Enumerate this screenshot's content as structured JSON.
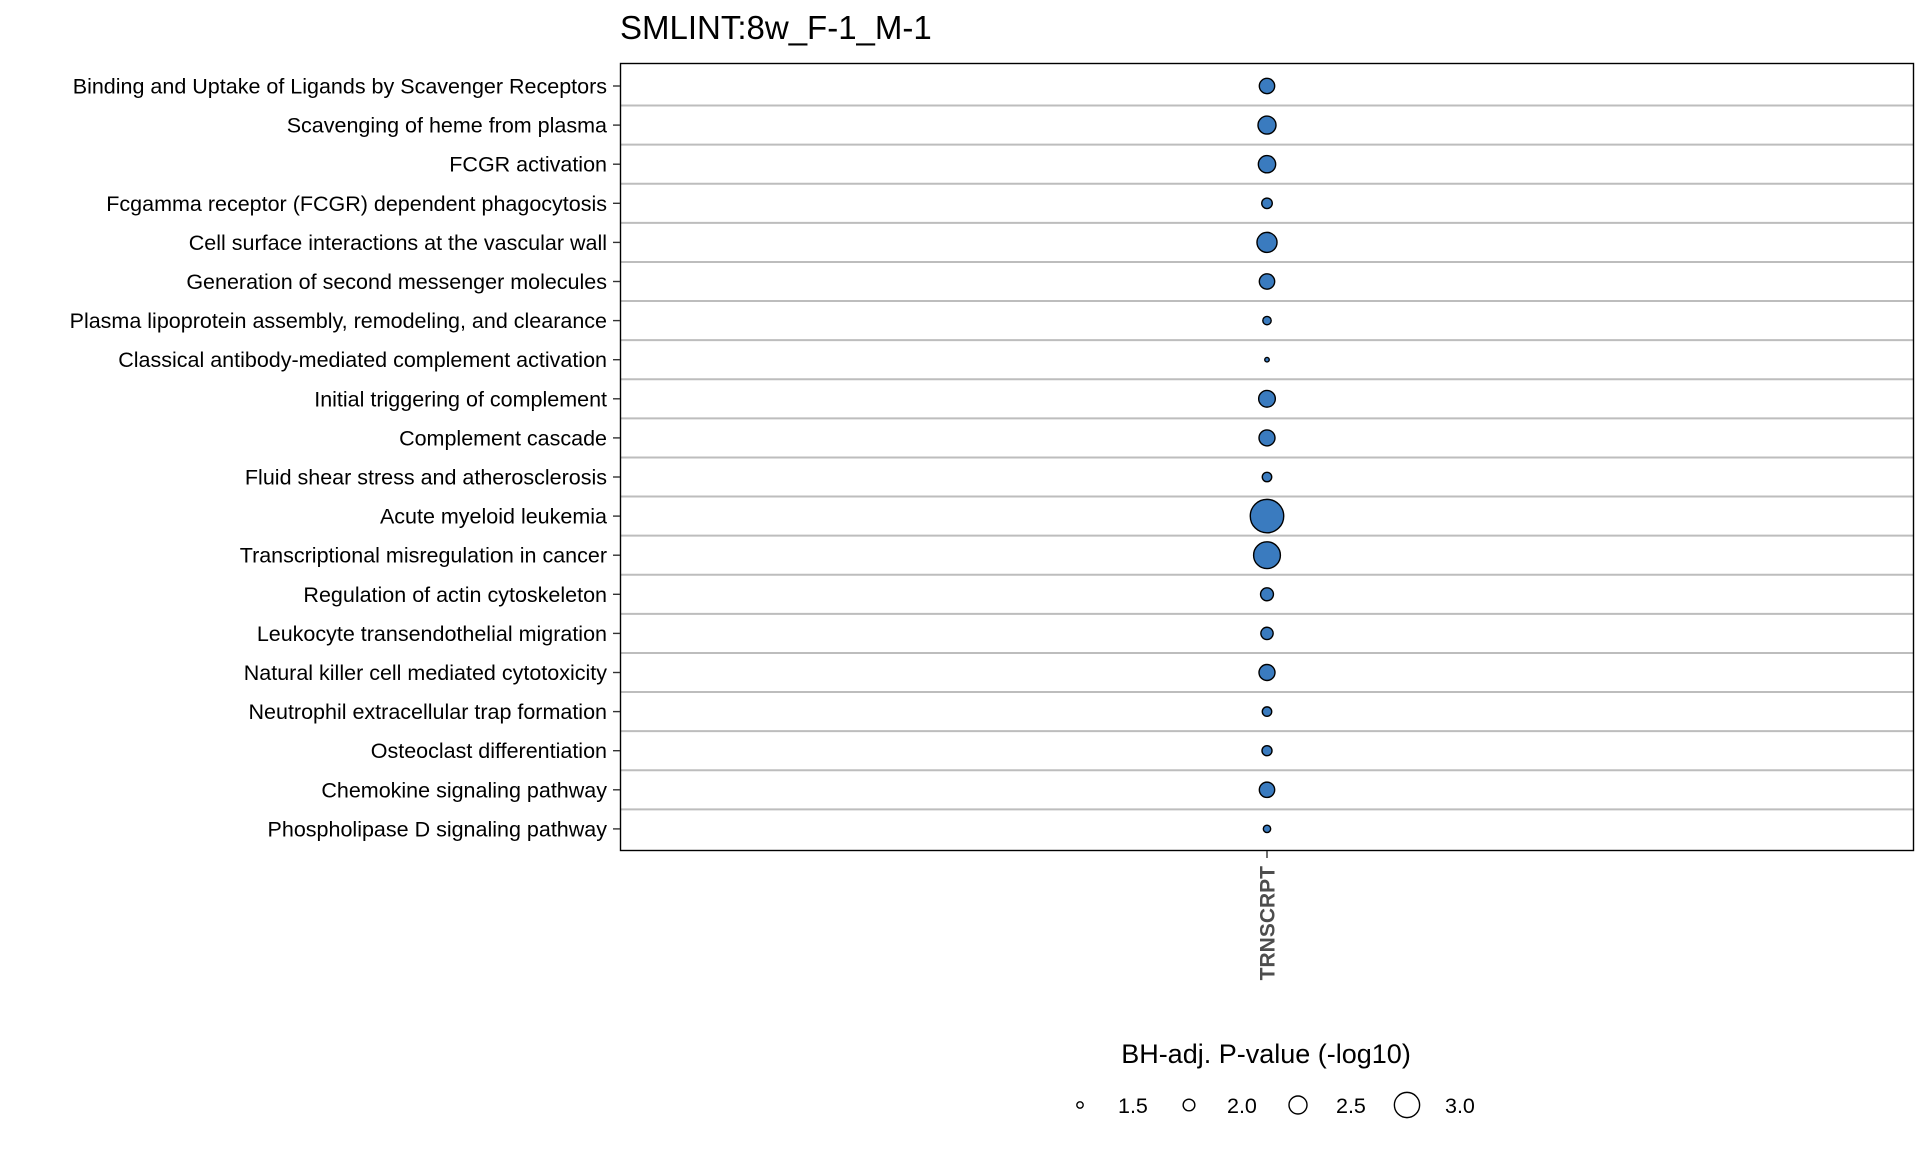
{
  "chart_data": {
    "type": "scatter",
    "title": "SMLINT:8w_F-1_M-1",
    "x_categories": [
      "TRNSCRPT"
    ],
    "y_categories": [
      "Binding and Uptake of Ligands by Scavenger Receptors",
      "Scavenging of heme from plasma",
      "FCGR activation",
      "Fcgamma receptor (FCGR) dependent phagocytosis",
      "Cell surface interactions at the vascular wall",
      "Generation of second messenger molecules",
      "Plasma lipoprotein assembly, remodeling, and clearance",
      "Classical antibody-mediated complement activation",
      "Initial triggering of complement",
      "Complement cascade",
      "Fluid shear stress and atherosclerosis",
      "Acute myeloid leukemia",
      "Transcriptional misregulation in cancer",
      "Regulation of actin cytoskeleton",
      "Leukocyte transendothelial migration",
      "Natural killer cell mediated cytotoxicity",
      "Neutrophil extracellular trap formation",
      "Osteoclast differentiation",
      "Chemokine signaling pathway",
      "Phospholipase D signaling pathway"
    ],
    "series": [
      {
        "x": "TRNSCRPT",
        "values": [
          2.3,
          2.5,
          2.45,
          1.9,
          2.65,
          2.3,
          1.7,
          1.3,
          2.4,
          2.35,
          1.8,
          3.5,
          3.1,
          2.1,
          2.05,
          2.35,
          1.8,
          1.85,
          2.3,
          1.6
        ]
      }
    ],
    "point_color": "#3a7bbf",
    "point_stroke": "#000000",
    "size_legend": {
      "title": "BH-adj. P-value (-log10)",
      "values": [
        1.5,
        2.0,
        2.5,
        3.0
      ],
      "labels": [
        "1.5",
        "2.0",
        "2.5",
        "3.0"
      ]
    },
    "grid": "horizontal",
    "legend_position": "bottom"
  }
}
